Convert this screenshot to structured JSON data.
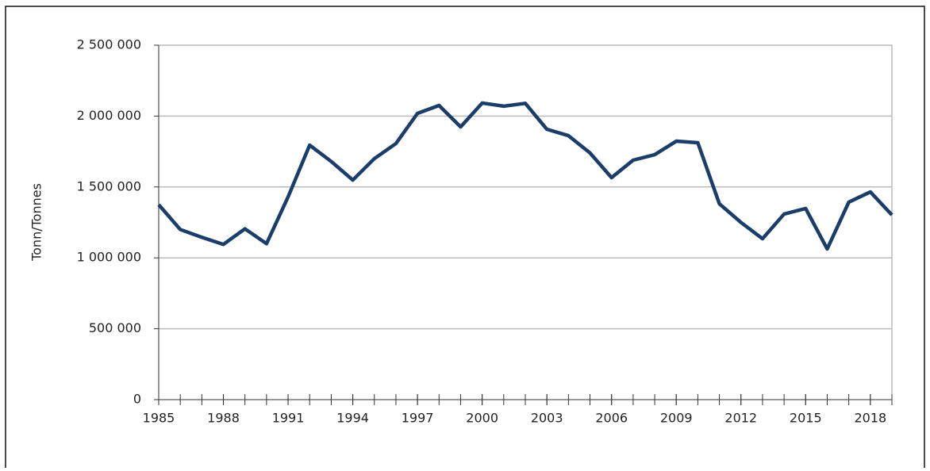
{
  "chart_data": {
    "type": "line",
    "y_label": "Tonn/Tonnes",
    "x": [
      1985,
      1986,
      1987,
      1988,
      1989,
      1990,
      1991,
      1992,
      1993,
      1994,
      1995,
      1996,
      1997,
      1998,
      1999,
      2000,
      2001,
      2002,
      2003,
      2004,
      2005,
      2006,
      2007,
      2008,
      2009,
      2010,
      2011,
      2012,
      2013,
      2014,
      2015,
      2016,
      2017,
      2018,
      2019
    ],
    "series": [
      {
        "name": "Tonn/Tonnes",
        "color": "#1b3d6a",
        "values": [
          1375000,
          1200000,
          1145000,
          1095000,
          1205000,
          1100000,
          1430000,
          1795000,
          1680000,
          1549000,
          1700000,
          1806000,
          2019000,
          2075000,
          1924000,
          2092000,
          2070000,
          2090000,
          1907000,
          1862000,
          1740000,
          1566000,
          1689000,
          1728000,
          1823000,
          1812000,
          1381000,
          1250000,
          1135000,
          1309000,
          1348000,
          1063000,
          1393000,
          1465000,
          1303000
        ]
      }
    ],
    "xlim": [
      1985,
      2019
    ],
    "xticks": [
      1985,
      1988,
      1991,
      1994,
      1997,
      2000,
      2003,
      2006,
      2009,
      2012,
      2015,
      2018
    ],
    "ylim": [
      0,
      2500000
    ],
    "yticks": [
      0,
      {
        "value": 500000,
        "label": "500 000"
      },
      {
        "value": 1000000,
        "label": "1 000 000"
      },
      {
        "value": 1500000,
        "label": "1 500 000"
      },
      {
        "value": 2000000,
        "label": "2 000 000"
      },
      {
        "value": 2500000,
        "label": "2 500 000"
      }
    ],
    "grid": true
  }
}
